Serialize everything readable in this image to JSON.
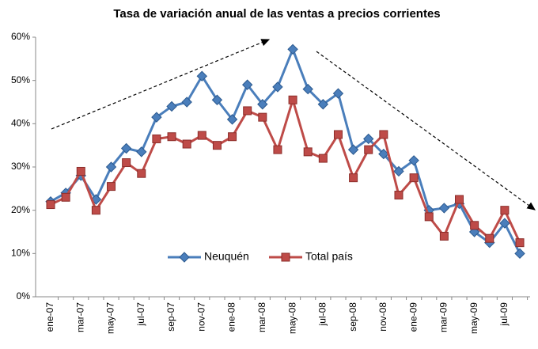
{
  "chart_data": {
    "type": "line",
    "title": "Tasa de variación anual de las ventas a precios corrientes",
    "categories": [
      "ene-07",
      null,
      "mar-07",
      null,
      "may-07",
      null,
      "jul-07",
      null,
      "sep-07",
      null,
      "nov-07",
      null,
      "ene-08",
      null,
      "mar-08",
      null,
      "may-08",
      null,
      "jul-08",
      null,
      "sep-08",
      null,
      "nov-08",
      null,
      "ene-09",
      null,
      "mar-09",
      null,
      "may-09",
      null,
      "jul-09",
      null
    ],
    "series": [
      {
        "name": "Neuquén",
        "color": "#4a7ebb",
        "marker": "diamond",
        "values": [
          22,
          24,
          28,
          22.5,
          30,
          34.3,
          33.5,
          41.5,
          44,
          45,
          51,
          45.5,
          41,
          49,
          44.5,
          48.5,
          57.2,
          48,
          44.5,
          47,
          34,
          36.5,
          33,
          29,
          31.5,
          20,
          20.5,
          21.5,
          15,
          12.5,
          17,
          10
        ]
      },
      {
        "name": "Total país",
        "color": "#be4b48",
        "marker": "square",
        "values": [
          21.3,
          23,
          29,
          20,
          25.5,
          31,
          28.5,
          36.5,
          37,
          35.3,
          37.3,
          35,
          37,
          43,
          41.5,
          34,
          45.5,
          33.5,
          32,
          37.5,
          27.5,
          34,
          37.5,
          23.5,
          27.5,
          18.5,
          14,
          22.5,
          16.5,
          13.5,
          20,
          12.5
        ]
      }
    ],
    "ylim": [
      0,
      60
    ],
    "yticks": [
      {
        "value": 0,
        "label": "0%"
      },
      {
        "value": 10,
        "label": "10%"
      },
      {
        "value": 20,
        "label": "20%"
      },
      {
        "value": 30,
        "label": "30%"
      },
      {
        "value": 40,
        "label": "40%"
      },
      {
        "value": 50,
        "label": "50%"
      },
      {
        "value": 60,
        "label": "60%"
      }
    ],
    "grid": false,
    "legend": "bottom-center"
  }
}
